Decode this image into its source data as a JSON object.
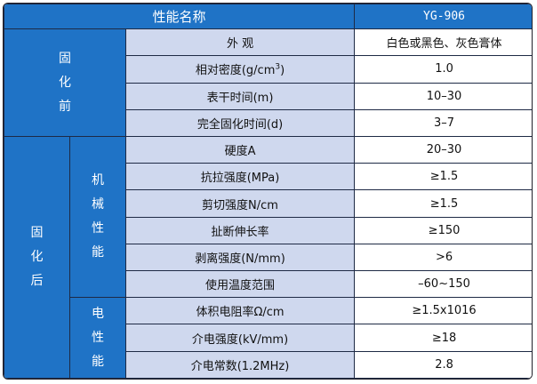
{
  "header": {
    "name_label": "性能名称",
    "product": "YG-906"
  },
  "groups": {
    "before": {
      "label": [
        "固",
        "化",
        "前"
      ]
    },
    "after": {
      "label": [
        "固",
        "化",
        "后"
      ]
    },
    "mechanical": {
      "label": [
        "机",
        "械",
        "性",
        "能"
      ]
    },
    "electrical": {
      "label": [
        "电",
        "性",
        "能"
      ]
    }
  },
  "rows": [
    {
      "prop": "外 观",
      "value": "白色或黑色、灰色膏体"
    },
    {
      "prop": "相对密度(g/cm",
      "prop_sup": "3",
      "prop_tail": ")",
      "value": "1.0"
    },
    {
      "prop": "表干时间(m)",
      "value": "10–30"
    },
    {
      "prop": "完全固化时间(d)",
      "value": "3–7"
    },
    {
      "prop": "硬度A",
      "value": "20–30"
    },
    {
      "prop": "抗拉强度(MPa)",
      "value": "≥1.5"
    },
    {
      "prop": "剪切强度N/cm",
      "value": "≥1.5"
    },
    {
      "prop": "扯断伸长率",
      "value": "≥150"
    },
    {
      "prop": "剥离强度(N/mm)",
      "value": ">6"
    },
    {
      "prop": "使用温度范围",
      "value": "–60~150"
    },
    {
      "prop": "体积电阻率Ω/cm",
      "value": "≥1.5x1016"
    },
    {
      "prop": "介电强度(kV/mm)",
      "value": "≥18"
    },
    {
      "prop": "介电常数(1.2MHz)",
      "value": "2.8"
    }
  ]
}
